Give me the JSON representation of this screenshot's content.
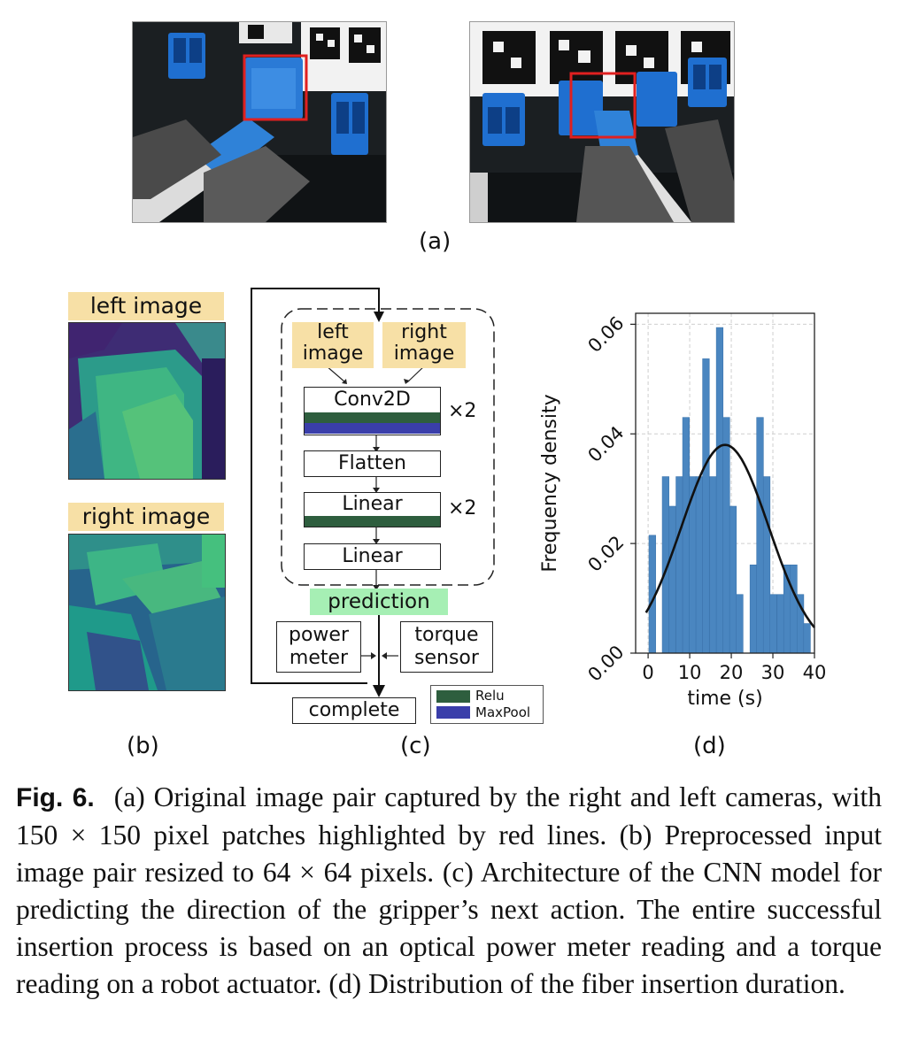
{
  "panel_a": {
    "label": "(a)"
  },
  "panel_b": {
    "label": "(b)",
    "left_tag": "left image",
    "right_tag": "right image"
  },
  "panel_c": {
    "label": "(c)",
    "left_input": [
      "left",
      "image"
    ],
    "right_input": [
      "right",
      "image"
    ],
    "conv": "Conv2D",
    "conv_repeat": "×2",
    "flatten": "Flatten",
    "linear1": "Linear",
    "linear_repeat": "×2",
    "linear2": "Linear",
    "prediction": "prediction",
    "power_meter": [
      "power",
      "meter"
    ],
    "torque_sensor": [
      "torque",
      "sensor"
    ],
    "complete": "complete",
    "legend": [
      {
        "label": "Relu",
        "color": "#2e5e3e"
      },
      {
        "label": "MaxPool",
        "color": "#3a3eaa"
      }
    ]
  },
  "panel_d": {
    "label": "(d)"
  },
  "chart_data": {
    "type": "bar",
    "xlabel": "time (s)",
    "ylabel": "Frequency density",
    "xlim": [
      -3,
      40
    ],
    "ylim": [
      0,
      0.062
    ],
    "xticks": [
      0,
      10,
      20,
      30,
      40
    ],
    "yticks": [
      0.0,
      0.02,
      0.04,
      0.06
    ],
    "ytick_labels": [
      "0.00",
      "0.02",
      "0.04",
      "0.06"
    ],
    "grid": true,
    "bar_color": "#4a86c0",
    "bin_width": 1.62,
    "bins": [
      {
        "x": 0.2,
        "y": 0.0215
      },
      {
        "x": 3.4,
        "y": 0.0322
      },
      {
        "x": 5.0,
        "y": 0.0268
      },
      {
        "x": 6.7,
        "y": 0.0322
      },
      {
        "x": 8.3,
        "y": 0.043
      },
      {
        "x": 9.9,
        "y": 0.0322
      },
      {
        "x": 11.5,
        "y": 0.0322
      },
      {
        "x": 13.1,
        "y": 0.0537
      },
      {
        "x": 14.8,
        "y": 0.0322
      },
      {
        "x": 16.4,
        "y": 0.0594
      },
      {
        "x": 18.0,
        "y": 0.043
      },
      {
        "x": 19.6,
        "y": 0.0268
      },
      {
        "x": 21.2,
        "y": 0.0107
      },
      {
        "x": 22.9,
        "y": 0.0
      },
      {
        "x": 24.5,
        "y": 0.0161
      },
      {
        "x": 26.1,
        "y": 0.043
      },
      {
        "x": 27.7,
        "y": 0.0322
      },
      {
        "x": 29.3,
        "y": 0.0107
      },
      {
        "x": 31.0,
        "y": 0.0107
      },
      {
        "x": 32.6,
        "y": 0.0161
      },
      {
        "x": 34.2,
        "y": 0.0161
      },
      {
        "x": 35.8,
        "y": 0.0107
      },
      {
        "x": 37.4,
        "y": 0.0054
      }
    ],
    "fit_curve": {
      "type": "normal",
      "mean": 18.5,
      "std": 10.5,
      "color": "#111111"
    }
  },
  "caption": {
    "fig_num": "Fig. 6.",
    "text": "(a) Original image pair captured by the right and left cameras, with 150 × 150 pixel patches highlighted by red lines. (b) Preprocessed input image pair resized to 64 × 64 pixels. (c) Architecture of the CNN model for predicting the direction of the gripper’s next action. The entire successful insertion process is based on an optical power meter reading and a torque reading on a robot actuator. (d) Distribution of the fiber insertion duration."
  }
}
